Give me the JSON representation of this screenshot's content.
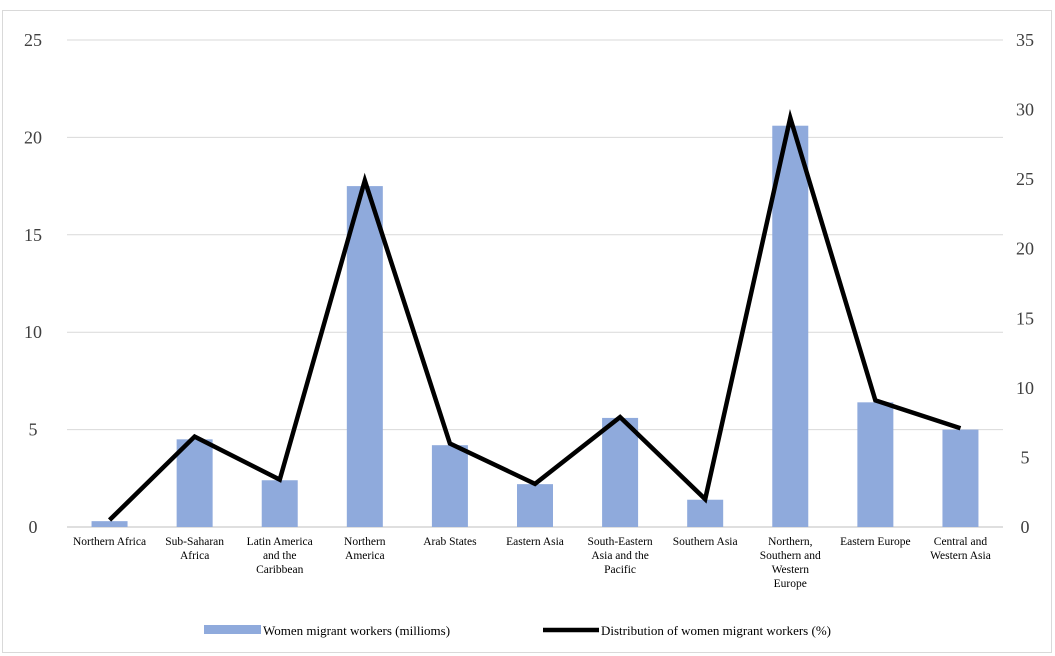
{
  "chart_data": {
    "type": "bar",
    "categories": [
      "Northern Africa",
      "Sub-Saharan Africa",
      "Latin America and the Caribbean",
      "Northern America",
      "Arab States",
      "Eastern Asia",
      "South-Eastern Asia and the Pacific",
      "Southern Asia",
      "Northern, Southern and Western Europe",
      "Eastern Europe",
      "Central and Western Asia"
    ],
    "category_lines": [
      [
        "Northern Africa"
      ],
      [
        "Sub-Saharan",
        "Africa"
      ],
      [
        "Latin America",
        "and the",
        "Caribbean"
      ],
      [
        "Northern",
        "America"
      ],
      [
        "Arab States"
      ],
      [
        "Eastern Asia"
      ],
      [
        "South-Eastern",
        "Asia and the",
        "Pacific"
      ],
      [
        "Southern Asia"
      ],
      [
        "Northern,",
        "Southern and",
        "Western",
        "Europe"
      ],
      [
        "Eastern Europe"
      ],
      [
        "Central and",
        "Western Asia"
      ]
    ],
    "series": [
      {
        "name": "Women migrant workers (millioms)",
        "type": "bar",
        "axis": "left",
        "color": "#8faadc",
        "values": [
          0.3,
          4.5,
          2.4,
          17.5,
          4.2,
          2.2,
          5.6,
          1.4,
          20.6,
          6.4,
          5.0
        ]
      },
      {
        "name": "Distribution of women migrant workers (%)",
        "type": "line",
        "axis": "right",
        "color": "#000000",
        "values": [
          0.5,
          6.5,
          3.4,
          24.9,
          6.0,
          3.1,
          7.9,
          2.0,
          29.4,
          9.1,
          7.1
        ]
      }
    ],
    "y_left": {
      "min": 0,
      "max": 25,
      "ticks": [
        0,
        5,
        10,
        15,
        20,
        25
      ]
    },
    "y_right": {
      "min": 0,
      "max": 35,
      "ticks": [
        0,
        5,
        10,
        15,
        20,
        25,
        30,
        35
      ]
    },
    "grid": true,
    "legend_position": "bottom"
  }
}
